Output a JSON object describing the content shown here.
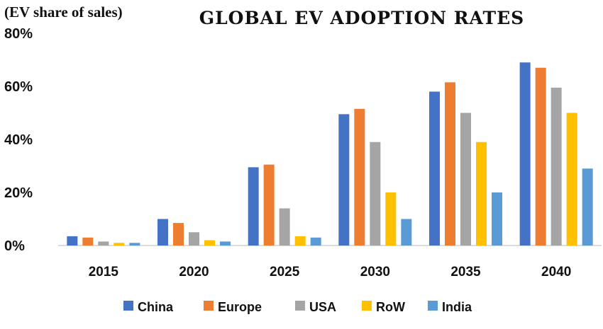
{
  "chart_data": {
    "type": "bar",
    "title": "GLOBAL EV ADOPTION RATES",
    "ylabel": "(EV share of sales)",
    "xlabel": "",
    "ylim": [
      0,
      80
    ],
    "yticks": [
      0,
      20,
      40,
      60,
      80
    ],
    "ytick_labels": [
      "0%",
      "20%",
      "40%",
      "60%",
      "80%"
    ],
    "categories": [
      "2015",
      "2020",
      "2025",
      "2030",
      "2035",
      "2040"
    ],
    "series": [
      {
        "name": "China",
        "color": "#4472C4",
        "values": [
          3.5,
          10,
          29.5,
          49.5,
          58,
          69
        ]
      },
      {
        "name": "Europe",
        "color": "#ED7D31",
        "values": [
          3,
          8.5,
          30.5,
          51.5,
          61.5,
          67
        ]
      },
      {
        "name": "USA",
        "color": "#A5A5A5",
        "values": [
          1.5,
          5,
          14,
          39,
          50,
          59.5
        ]
      },
      {
        "name": "RoW",
        "color": "#FFC000",
        "values": [
          1,
          2,
          3.5,
          20,
          39,
          50
        ]
      },
      {
        "name": "India",
        "color": "#5B9BD5",
        "values": [
          1,
          1.5,
          3,
          10,
          20,
          29
        ]
      }
    ],
    "legend_position": "bottom",
    "grid": false
  }
}
